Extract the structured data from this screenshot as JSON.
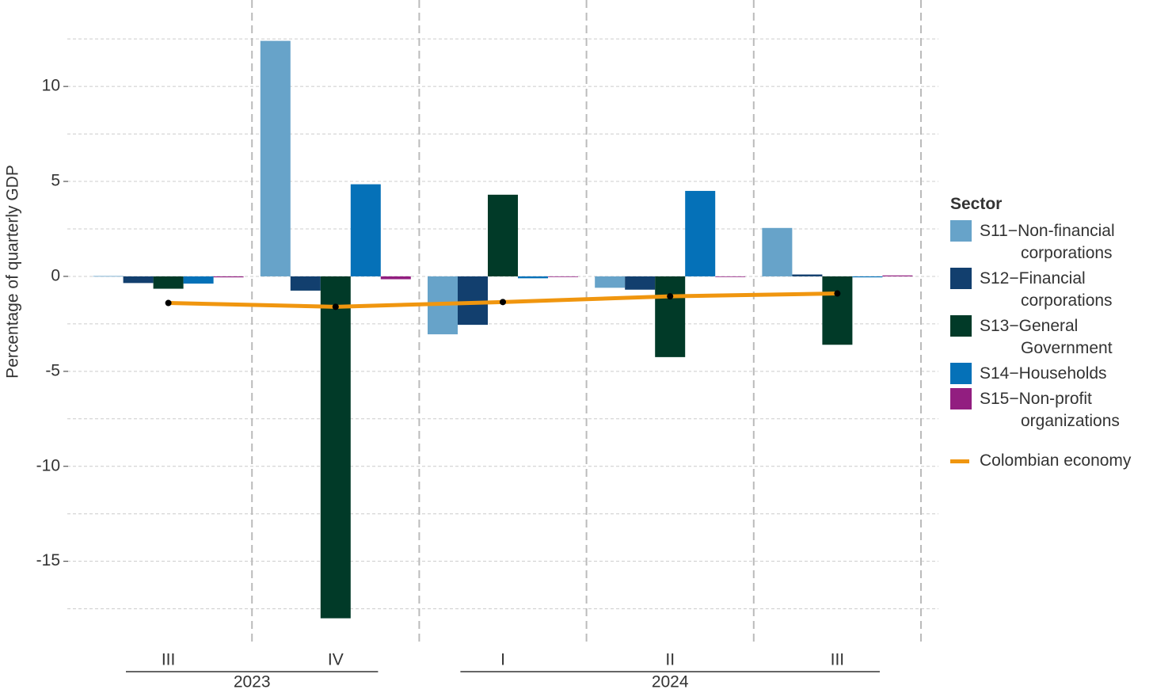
{
  "chart_data": {
    "type": "bar",
    "y_label": "Percentage of quarterly GDP",
    "categories": [
      "III",
      "IV",
      "I",
      "II",
      "III"
    ],
    "groups": [
      {
        "label": "2023",
        "start": 0,
        "end": 1
      },
      {
        "label": "2024",
        "start": 2,
        "end": 4
      }
    ],
    "legend_title": "Sector",
    "series": [
      {
        "name": "S11−Non-financial corporations",
        "color": "#67a3c9",
        "values": [
          0.02,
          12.4,
          -3.05,
          -0.6,
          2.55
        ]
      },
      {
        "name": "S12−Financial corporations",
        "color": "#123f6e",
        "values": [
          -0.35,
          -0.75,
          -2.55,
          -0.7,
          0.1
        ]
      },
      {
        "name": "S13−General Government",
        "color": "#013a28",
        "values": [
          -0.65,
          -18.0,
          4.3,
          -4.25,
          -3.6
        ]
      },
      {
        "name": "S14−Households",
        "color": "#0571b8",
        "values": [
          -0.38,
          4.85,
          -0.1,
          4.5,
          -0.05
        ]
      },
      {
        "name": "S15−Non-profit organizations",
        "color": "#921e80",
        "values": [
          -0.05,
          -0.15,
          -0.03,
          -0.02,
          0.05
        ]
      },
      {
        "name": "Colombian economy",
        "type": "line",
        "color": "#f0960f",
        "values": [
          -1.4,
          -1.6,
          -1.35,
          -1.05,
          -0.9
        ]
      }
    ],
    "ylim": [
      -18.6,
      13.3
    ],
    "yticks": [
      -15,
      -10,
      -5,
      0,
      5,
      10
    ],
    "minor_yticks": [
      -17.5,
      -12.5,
      -7.5,
      -2.5,
      2.5,
      7.5,
      12.5
    ],
    "grid": true
  }
}
